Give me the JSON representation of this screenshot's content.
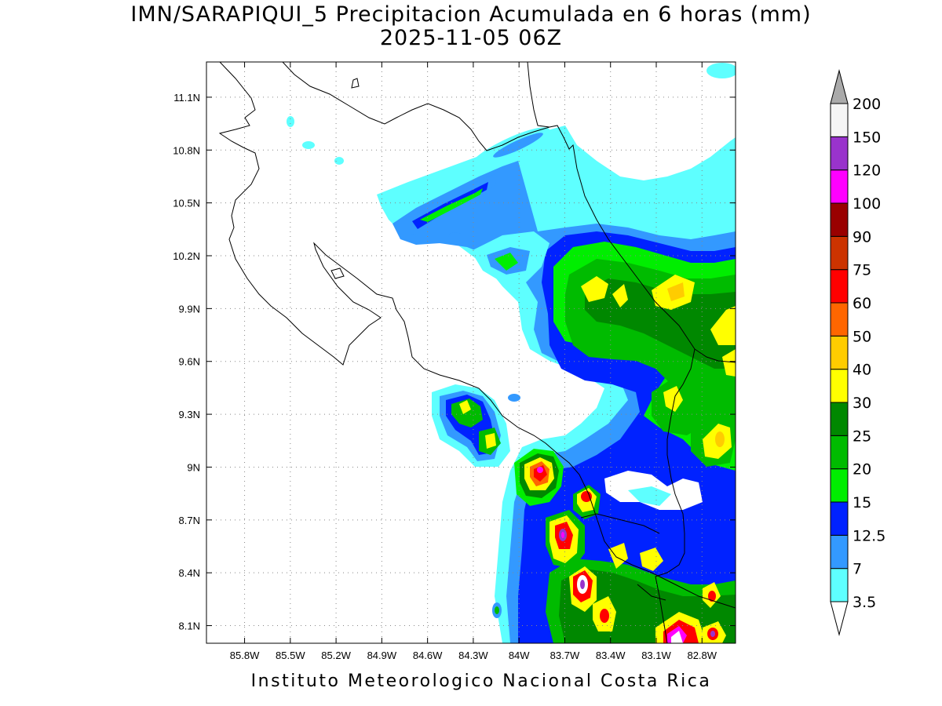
{
  "header": {
    "title": "IMN/SARAPIQUI_5 Precipitacion Acumulada en 6 horas (mm)",
    "subtitle": "2025-11-05 06Z"
  },
  "footer": {
    "credit": "Instituto Meteorologico Nacional Costa Rica"
  },
  "map": {
    "lon_range": [
      -86.05,
      -82.58
    ],
    "lat_range": [
      8.0,
      11.3
    ],
    "grid": true,
    "x_ticks": [
      {
        "value": -85.8,
        "label": "85.8W"
      },
      {
        "value": -85.5,
        "label": "85.5W"
      },
      {
        "value": -85.2,
        "label": "85.2W"
      },
      {
        "value": -84.9,
        "label": "84.9W"
      },
      {
        "value": -84.6,
        "label": "84.6W"
      },
      {
        "value": -84.3,
        "label": "84.3W"
      },
      {
        "value": -84.0,
        "label": "84W"
      },
      {
        "value": -83.7,
        "label": "83.7W"
      },
      {
        "value": -83.4,
        "label": "83.4W"
      },
      {
        "value": -83.1,
        "label": "83.1W"
      },
      {
        "value": -82.8,
        "label": "82.8W"
      }
    ],
    "y_ticks": [
      {
        "value": 11.1,
        "label": "11.1N"
      },
      {
        "value": 10.8,
        "label": "10.8N"
      },
      {
        "value": 10.5,
        "label": "10.5N"
      },
      {
        "value": 10.2,
        "label": "10.2N"
      },
      {
        "value": 9.9,
        "label": "9.9N"
      },
      {
        "value": 9.6,
        "label": "9.6N"
      },
      {
        "value": 9.3,
        "label": "9.3N"
      },
      {
        "value": 9.0,
        "label": "9N"
      },
      {
        "value": 8.7,
        "label": "8.7N"
      },
      {
        "value": 8.4,
        "label": "8.4N"
      },
      {
        "value": 8.1,
        "label": "8.1N"
      }
    ]
  },
  "colorbar": {
    "labels": [
      "3.5",
      "7",
      "12.5",
      "15",
      "20",
      "25",
      "30",
      "40",
      "50",
      "60",
      "75",
      "90",
      "100",
      "120",
      "150",
      "200"
    ],
    "colors": [
      "#5effff",
      "#3399ff",
      "#0022ff",
      "#00ee00",
      "#00bb00",
      "#008800",
      "#ffff00",
      "#ffcc00",
      "#ff6600",
      "#ff0000",
      "#cc3300",
      "#990000",
      "#ff00ff",
      "#9933cc",
      "#f5f5f5",
      "#aaaaaa"
    ],
    "under_color": "#ffffff",
    "over_color": "#aaaaaa"
  }
}
